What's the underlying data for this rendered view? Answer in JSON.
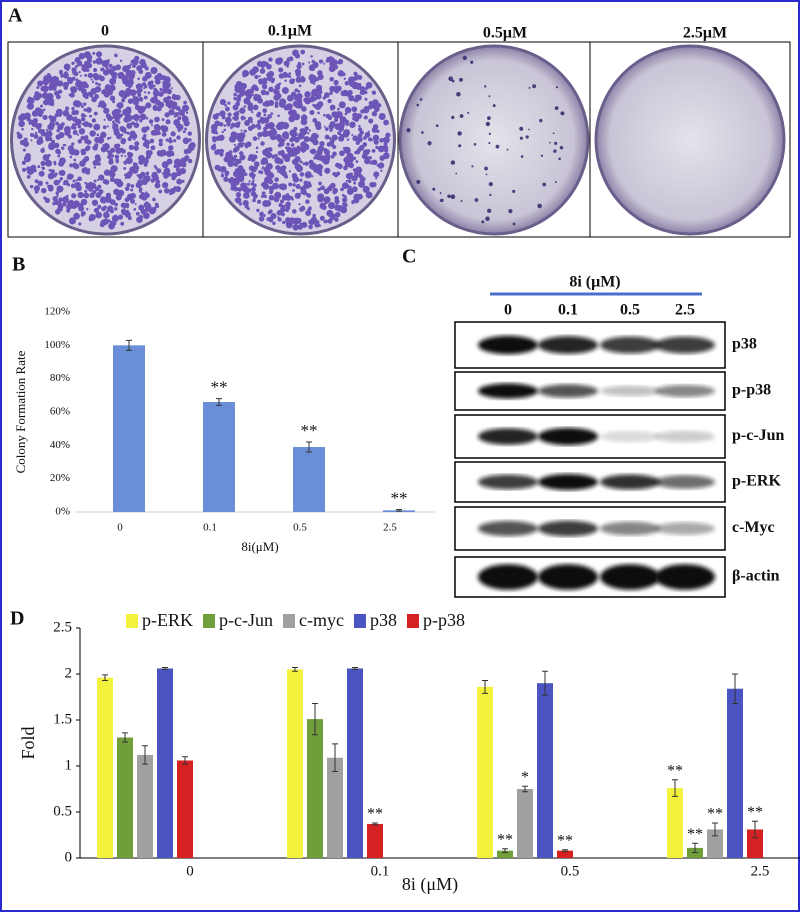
{
  "panel_labels": [
    "A",
    "B",
    "C",
    "D"
  ],
  "plates": {
    "labels": [
      "0",
      "0.1μM",
      "0.5μM",
      "2.5μM"
    ]
  },
  "blot": {
    "title": "8i (μM)",
    "lanes": [
      "0",
      "0.1",
      "0.5",
      "2.5"
    ],
    "rows": [
      "p38",
      "p-p38",
      "p-c-Jun",
      "p-ERK",
      "c-Myc",
      "β-actin"
    ]
  },
  "chart_data": [
    {
      "type": "bar",
      "y_label": "Colony Formation Rate",
      "x_label": "8i(μM)",
      "categories": [
        "0",
        "0.1",
        "0.5",
        "2.5"
      ],
      "values": [
        100,
        66,
        39,
        1
      ],
      "errors": [
        3,
        2,
        3,
        0.5
      ],
      "annotations": [
        null,
        "**",
        "**",
        "**"
      ],
      "color": "#6a8fd8",
      "ylim": [
        0,
        120
      ],
      "yticks": [
        {
          "value": 0,
          "label": "0%"
        },
        {
          "value": 20,
          "label": "20%"
        },
        {
          "value": 40,
          "label": "40%"
        },
        {
          "value": 60,
          "label": "60%"
        },
        {
          "value": 80,
          "label": "80%"
        },
        {
          "value": 100,
          "label": "100%"
        },
        {
          "value": 120,
          "label": "120%"
        }
      ]
    },
    {
      "type": "grouped_bar",
      "y_label": "Fold",
      "x_label": "8i (μM)",
      "categories": [
        "0",
        "0.1",
        "0.5",
        "2.5"
      ],
      "legend": "top",
      "series": [
        {
          "name": "p-ERK",
          "color": "#f2f23c",
          "values": [
            1.96,
            2.05,
            1.86,
            0.76
          ],
          "errors": [
            0.03,
            0.02,
            0.07,
            0.09
          ],
          "annotations": [
            null,
            null,
            null,
            "**"
          ]
        },
        {
          "name": "p-c-Jun",
          "color": "#6f9e3a",
          "values": [
            1.31,
            1.51,
            0.08,
            0.11
          ],
          "errors": [
            0.05,
            0.17,
            0.02,
            0.05
          ],
          "annotations": [
            null,
            null,
            "**",
            "**"
          ]
        },
        {
          "name": "c-myc",
          "color": "#a0a0a0",
          "values": [
            1.12,
            1.09,
            0.75,
            0.31
          ],
          "errors": [
            0.1,
            0.15,
            0.03,
            0.07
          ],
          "annotations": [
            null,
            null,
            "*",
            "**"
          ]
        },
        {
          "name": "p38",
          "color": "#4a55c2",
          "values": [
            2.06,
            2.06,
            1.9,
            1.84
          ],
          "errors": [
            0.01,
            0.01,
            0.13,
            0.16
          ],
          "annotations": [
            null,
            null,
            null,
            null
          ]
        },
        {
          "name": "p-p38",
          "color": "#d42222",
          "values": [
            1.06,
            0.37,
            0.08,
            0.31
          ],
          "errors": [
            0.04,
            0.01,
            0.01,
            0.09
          ],
          "annotations": [
            null,
            "**",
            "**",
            "**"
          ]
        }
      ],
      "ylim": [
        0,
        2.5
      ],
      "yticks": [
        0,
        0.5,
        1,
        1.5,
        2,
        2.5
      ]
    }
  ]
}
